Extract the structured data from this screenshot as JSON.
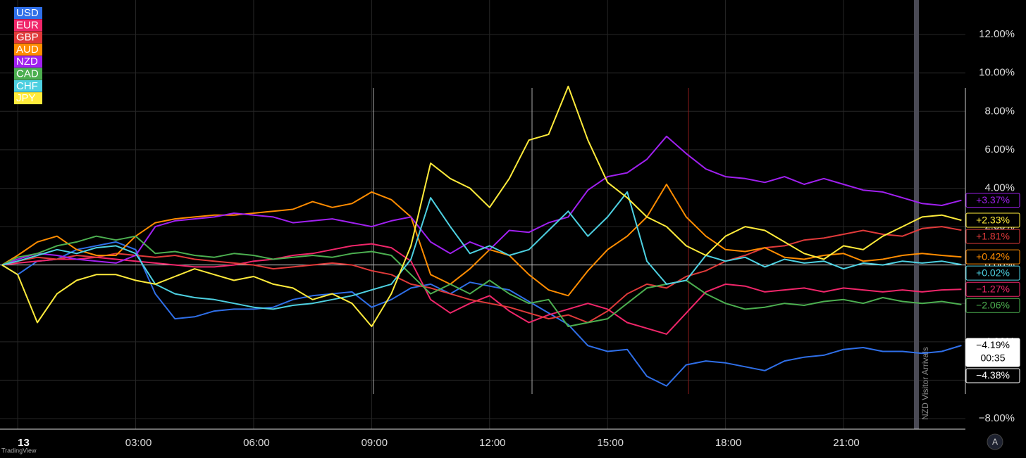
{
  "chart_data": {
    "type": "line",
    "x": [
      -0.4,
      0,
      0.5,
      1,
      1.5,
      2,
      2.5,
      3,
      3.5,
      4,
      4.5,
      5,
      5.5,
      6,
      6.5,
      7,
      7.5,
      8,
      8.5,
      9,
      9.5,
      10,
      10.5,
      11,
      11.5,
      12,
      12.5,
      13,
      13.5,
      14,
      14.5,
      15,
      15.5,
      16,
      16.5,
      17,
      17.5,
      18,
      18.5,
      19,
      19.5,
      20,
      20.5,
      21,
      21.5,
      22,
      22.5,
      23,
      23.5,
      24
    ],
    "xlim": [
      -0.45,
      24.1
    ],
    "xticks": [
      {
        "value": 0,
        "label": "13"
      },
      {
        "value": 3,
        "label": "03:00"
      },
      {
        "value": 6,
        "label": "06:00"
      },
      {
        "value": 9,
        "label": "09:00"
      },
      {
        "value": 12,
        "label": "12:00"
      },
      {
        "value": 15,
        "label": "15:00"
      },
      {
        "value": 18,
        "label": "18:00"
      },
      {
        "value": 21,
        "label": "21:00"
      }
    ],
    "ylim": [
      -8.55,
      13.8
    ],
    "yticks": [
      {
        "value": 12,
        "label": "12.00%"
      },
      {
        "value": 10,
        "label": "10.00%"
      },
      {
        "value": 8,
        "label": "8.00%"
      },
      {
        "value": 6,
        "label": "6.00%"
      },
      {
        "value": 4,
        "label": "4.00%"
      },
      {
        "value": 2,
        "label": "2.00%"
      },
      {
        "value": 0,
        "label": "0.00%"
      },
      {
        "value": -2,
        "label": "−2.00%"
      },
      {
        "value": -4,
        "label": "−4.00%"
      },
      {
        "value": -6,
        "label": "−6.00%"
      },
      {
        "value": -8,
        "label": "−8.00%"
      }
    ],
    "grid": true,
    "series": [
      {
        "name": "USD",
        "color": "#2f6fe8",
        "last_label": "−4.19%",
        "values": [
          0,
          -0.5,
          0.2,
          0.3,
          0.8,
          1.0,
          1.2,
          0.8,
          -1.5,
          -2.8,
          -2.7,
          -2.4,
          -2.3,
          -2.3,
          -2.2,
          -1.8,
          -1.6,
          -1.5,
          -1.4,
          -2.2,
          -1.8,
          -1.2,
          -1.0,
          -1.5,
          -0.9,
          -1.1,
          -1.3,
          -1.9,
          -2.5,
          -3.1,
          -4.2,
          -4.5,
          -4.4,
          -5.8,
          -6.3,
          -5.2,
          -5.0,
          -5.1,
          -5.3,
          -5.5,
          -5.0,
          -4.8,
          -4.7,
          -4.4,
          -4.3,
          -4.5,
          -4.5,
          -4.6,
          -4.5,
          -4.19
        ]
      },
      {
        "name": "EUR",
        "color": "#f0266a",
        "last_label": "−1.27%",
        "values": [
          0,
          0.1,
          0.2,
          0.3,
          0.3,
          0.4,
          0.3,
          0.2,
          0.1,
          0,
          -0.1,
          -0.1,
          0,
          0.2,
          0.3,
          0.5,
          0.6,
          0.8,
          1.0,
          1.1,
          0.9,
          0.2,
          -1.8,
          -2.5,
          -2.0,
          -1.6,
          -2.4,
          -3.0,
          -2.6,
          -2.3,
          -2.0,
          -2.3,
          -3.0,
          -3.3,
          -3.6,
          -2.5,
          -1.4,
          -1.0,
          -1.1,
          -1.4,
          -1.3,
          -1.2,
          -1.4,
          -1.2,
          -1.3,
          -1.4,
          -1.3,
          -1.4,
          -1.3,
          -1.27
        ]
      },
      {
        "name": "GBP",
        "color": "#e03a3a",
        "last_label": "+1.81%",
        "values": [
          0,
          0.2,
          0.4,
          0.3,
          0.5,
          0.4,
          0.6,
          0.5,
          0.4,
          0.5,
          0.3,
          0.2,
          0.1,
          0,
          -0.2,
          -0.1,
          0,
          0.1,
          0,
          -0.3,
          -0.5,
          -1.0,
          -1.2,
          -1.5,
          -1.8,
          -2.0,
          -2.2,
          -2.5,
          -2.8,
          -2.6,
          -3.0,
          -2.4,
          -1.5,
          -1.0,
          -1.2,
          -0.6,
          -0.3,
          0.2,
          0.5,
          0.9,
          1.0,
          1.3,
          1.4,
          1.6,
          1.8,
          1.6,
          1.5,
          1.9,
          2.0,
          1.81
        ]
      },
      {
        "name": "AUD",
        "color": "#ff8c00",
        "last_label": "+0.42%",
        "values": [
          0,
          0.5,
          1.2,
          1.5,
          0.8,
          0.5,
          0.5,
          1.5,
          2.2,
          2.4,
          2.5,
          2.6,
          2.6,
          2.7,
          2.8,
          2.9,
          3.3,
          3.0,
          3.2,
          3.8,
          3.4,
          2.5,
          -0.5,
          -1.0,
          -0.2,
          0.8,
          0.5,
          -0.5,
          -1.3,
          -1.6,
          -0.3,
          0.8,
          1.5,
          2.5,
          4.2,
          2.5,
          1.5,
          0.8,
          0.7,
          0.9,
          0.4,
          0.3,
          0.5,
          0.6,
          0.2,
          0.3,
          0.5,
          0.6,
          0.5,
          0.42
        ]
      },
      {
        "name": "NZD",
        "color": "#a020f0",
        "last_label": "+3.37%",
        "values": [
          0,
          0.3,
          0.6,
          0.5,
          0.3,
          0.2,
          0.1,
          0.5,
          2.0,
          2.3,
          2.4,
          2.5,
          2.7,
          2.6,
          2.5,
          2.2,
          2.3,
          2.4,
          2.2,
          2.0,
          2.3,
          2.5,
          1.2,
          0.6,
          1.2,
          0.8,
          1.8,
          1.7,
          2.2,
          2.5,
          3.9,
          4.6,
          4.8,
          5.5,
          6.7,
          5.8,
          5.0,
          4.6,
          4.5,
          4.3,
          4.6,
          4.2,
          4.5,
          4.2,
          3.9,
          3.8,
          3.5,
          3.2,
          3.1,
          3.37
        ]
      },
      {
        "name": "CAD",
        "color": "#4caf50",
        "last_label": "−2.06%",
        "values": [
          0,
          0.4,
          0.6,
          1.0,
          1.2,
          1.5,
          1.3,
          1.5,
          0.6,
          0.7,
          0.5,
          0.4,
          0.6,
          0.5,
          0.3,
          0.4,
          0.5,
          0.4,
          0.6,
          0.7,
          0.5,
          -0.5,
          -1.5,
          -1.0,
          -1.5,
          -0.8,
          -1.5,
          -2.0,
          -1.8,
          -3.2,
          -3.0,
          -2.8,
          -2.0,
          -1.2,
          -1.0,
          -0.8,
          -1.5,
          -2.0,
          -2.3,
          -2.2,
          -2.0,
          -2.1,
          -1.9,
          -1.8,
          -2.0,
          -1.7,
          -1.9,
          -2.0,
          -1.9,
          -2.06
        ]
      },
      {
        "name": "CHF",
        "color": "#4dd0e1",
        "last_label": "+0.02%",
        "values": [
          0,
          0.2,
          0.5,
          0.8,
          0.6,
          0.9,
          1.0,
          0.6,
          -1.0,
          -1.5,
          -1.7,
          -1.8,
          -2.0,
          -2.2,
          -2.3,
          -2.1,
          -2.0,
          -1.8,
          -1.6,
          -1.3,
          -1.0,
          0.3,
          3.5,
          2.0,
          0.6,
          1.0,
          0.5,
          0.8,
          1.8,
          2.8,
          1.5,
          2.5,
          3.8,
          0.2,
          -1.0,
          -0.8,
          0.5,
          0.2,
          0.4,
          -0.1,
          0.3,
          0.1,
          0.2,
          -0.2,
          0.1,
          0.0,
          0.2,
          0.1,
          0.2,
          0.02
        ]
      },
      {
        "name": "JPY",
        "color": "#ffeb3b",
        "last_label": "+2.33%",
        "values": [
          0,
          -0.5,
          -3.0,
          -1.5,
          -0.8,
          -0.5,
          -0.5,
          -0.8,
          -1.0,
          -0.6,
          -0.2,
          -0.5,
          -0.8,
          -0.6,
          -1.0,
          -1.2,
          -1.8,
          -1.5,
          -2.0,
          -3.2,
          -1.5,
          1.0,
          5.3,
          4.5,
          4.0,
          3.0,
          4.5,
          6.5,
          6.8,
          9.3,
          6.5,
          4.3,
          3.5,
          2.5,
          2.0,
          1.0,
          0.5,
          1.5,
          2.0,
          1.8,
          1.2,
          0.6,
          0.3,
          1.0,
          0.8,
          1.5,
          2.0,
          2.5,
          2.6,
          2.33
        ]
      }
    ],
    "countdown": "00:35",
    "price_line": {
      "value": -4.38,
      "label": "−4.38%"
    },
    "event": "NZD Visitor Arrivals"
  },
  "footer": {
    "brand": "TradingView",
    "button": "A"
  }
}
